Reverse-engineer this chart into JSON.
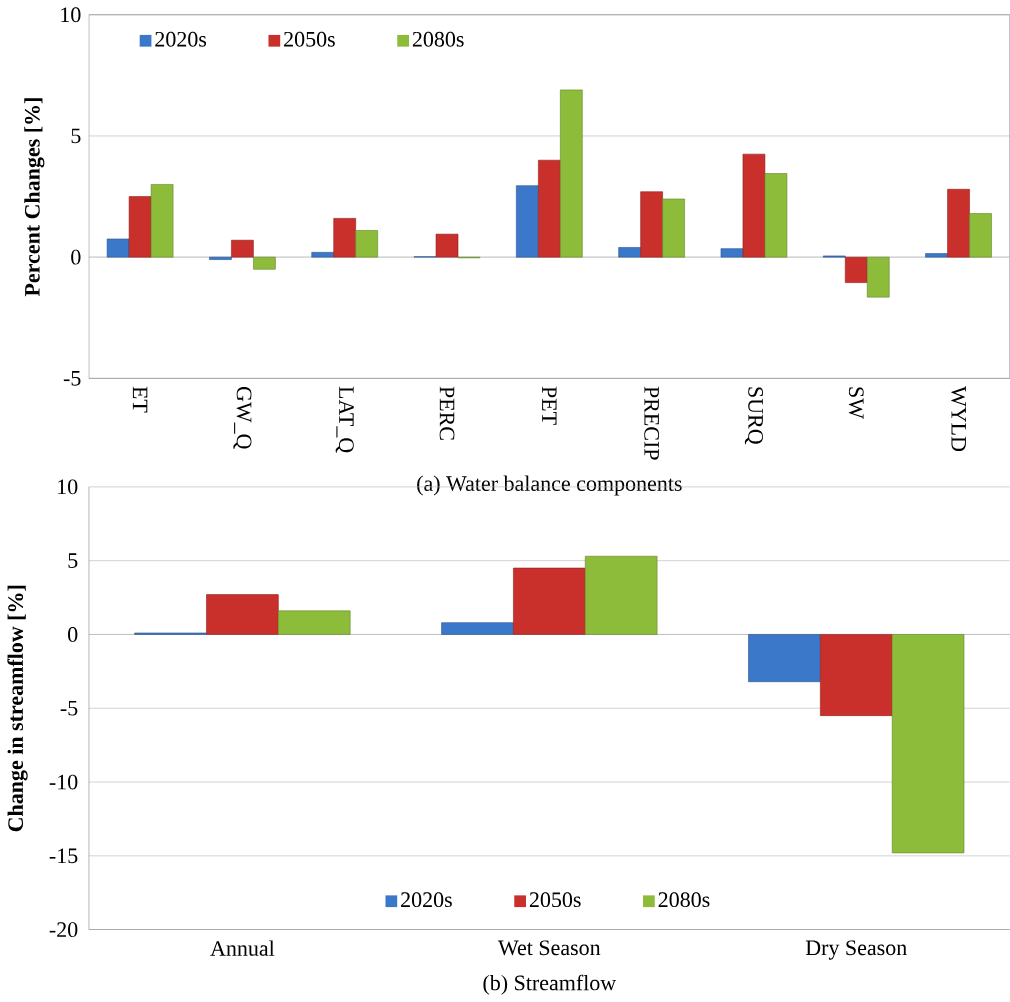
{
  "chart_data": [
    {
      "type": "bar",
      "xlabel": "(a) Water balance components",
      "ylabel": "Percent Changes [%]",
      "categories": [
        "ET",
        "GW_Q",
        "LAT_Q",
        "PERC",
        "PET",
        "PRECIP",
        "SURQ",
        "SW",
        "WYLD"
      ],
      "series": [
        {
          "name": "2020s",
          "color": "#3b78c9",
          "values": [
            0.75,
            -0.1,
            0.2,
            0.02,
            2.95,
            0.4,
            0.35,
            0.05,
            0.15
          ]
        },
        {
          "name": "2050s",
          "color": "#c9302c",
          "values": [
            2.5,
            0.7,
            1.6,
            0.95,
            4.0,
            2.7,
            4.25,
            -1.05,
            2.8
          ]
        },
        {
          "name": "2080s",
          "color": "#8dbb3a",
          "values": [
            3.0,
            -0.5,
            1.1,
            -0.03,
            6.9,
            2.4,
            3.45,
            -1.65,
            1.8
          ]
        }
      ],
      "ylim": [
        -5,
        10
      ],
      "yticks": [
        -5,
        0,
        5,
        10
      ],
      "grid": "y",
      "legend": "top left"
    },
    {
      "type": "bar",
      "xlabel": "(b) Streamflow",
      "ylabel": "Change in streamflow [%]",
      "categories": [
        "Annual",
        "Wet Season",
        "Dry Season"
      ],
      "series": [
        {
          "name": "2020s",
          "color": "#3b78c9",
          "values": [
            0.1,
            0.8,
            -3.2
          ]
        },
        {
          "name": "2050s",
          "color": "#c9302c",
          "values": [
            2.7,
            4.5,
            -5.5
          ]
        },
        {
          "name": "2080s",
          "color": "#8dbb3a",
          "values": [
            1.6,
            5.3,
            -14.8
          ]
        }
      ],
      "ylim": [
        -20,
        10
      ],
      "yticks": [
        -20,
        -15,
        -10,
        -5,
        0,
        5,
        10
      ],
      "grid": "y",
      "legend": "bottom"
    }
  ]
}
